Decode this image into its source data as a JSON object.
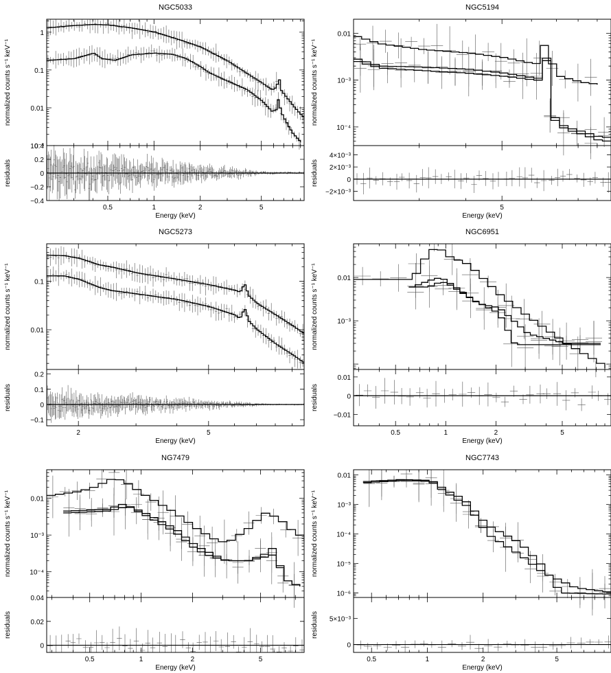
{
  "figure": {
    "common": {
      "ylabel_top": "normalized counts s⁻¹ keV⁻¹",
      "ylabel_bottom": "residuals",
      "xlabel": "Energy (keV)"
    }
  },
  "chart_data": [
    {
      "type": "line",
      "title": "NGC5033",
      "xlabel": "Energy (keV)",
      "ylabel": "normalized counts s⁻¹ keV⁻¹",
      "xscale": "log",
      "xlim": [
        0.2,
        9.5
      ],
      "top": {
        "yscale": "log",
        "ylim": [
          0.001,
          2.2
        ],
        "ticks": [
          {
            "v": 1,
            "t": "1"
          },
          {
            "v": 0.1,
            "t": "0.1"
          },
          {
            "v": 0.01,
            "t": "0.01"
          },
          {
            "v": 0.001,
            "t": "10⁻³"
          }
        ],
        "series": [
          {
            "x": [
              0.2,
              0.3,
              0.4,
              0.5,
              0.7,
              1.0,
              1.5,
              2.0,
              3.0,
              4.0,
              5.0,
              5.8,
              6.2,
              6.4,
              6.6,
              7.0,
              8.0,
              9.5
            ],
            "y": [
              1.3,
              1.5,
              1.6,
              1.55,
              1.3,
              1.0,
              0.6,
              0.4,
              0.17,
              0.08,
              0.045,
              0.03,
              0.035,
              0.07,
              0.03,
              0.022,
              0.011,
              0.005
            ]
          },
          {
            "x": [
              0.2,
              0.3,
              0.4,
              0.45,
              0.55,
              0.7,
              1.0,
              1.3,
              1.6,
              2.0,
              2.2,
              2.5,
              3.0,
              4.0,
              5.0,
              5.8,
              6.2,
              6.4,
              6.6,
              7.0,
              7.5,
              8.0,
              9.0
            ],
            "y": [
              0.18,
              0.2,
              0.28,
              0.2,
              0.18,
              0.25,
              0.28,
              0.26,
              0.2,
              0.12,
              0.09,
              0.07,
              0.05,
              0.03,
              0.015,
              0.008,
              0.009,
              0.02,
              0.008,
              0.005,
              0.003,
              0.002,
              0.0012
            ]
          }
        ]
      },
      "bottom": {
        "ylim": [
          -0.4,
          0.4
        ],
        "ticks": [
          {
            "v": 0.4,
            "t": "0.4"
          },
          {
            "v": 0.2,
            "t": "0.2"
          },
          {
            "v": 0,
            "t": "0"
          },
          {
            "v": -0.2,
            "t": "−0.2"
          },
          {
            "v": -0.4,
            "t": "−0.4"
          }
        ]
      },
      "xticks": [
        {
          "v": 0.5,
          "t": "0.5"
        },
        {
          "v": 1,
          "t": "1"
        },
        {
          "v": 2,
          "t": "2"
        },
        {
          "v": 5,
          "t": "5"
        }
      ],
      "points": 140,
      "resid_amp": 0.3
    },
    {
      "type": "line",
      "title": "NGC5194",
      "xlabel": "Energy (keV)",
      "ylabel": "normalized counts s⁻¹ keV⁻¹",
      "xscale": "log",
      "xlim": [
        2.0,
        9.8
      ],
      "top": {
        "yscale": "log",
        "ylim": [
          4e-05,
          0.02
        ],
        "ticks": [
          {
            "v": 0.01,
            "t": "0.01"
          },
          {
            "v": 0.001,
            "t": "10⁻³"
          },
          {
            "v": 0.0001,
            "t": "10⁻⁴"
          }
        ],
        "series": [
          {
            "x": [
              2.0,
              2.3,
              3.0,
              4.0,
              5.0,
              6.0,
              6.3,
              6.4,
              6.6,
              7.0,
              8.0,
              9.0
            ],
            "y": [
              0.0085,
              0.006,
              0.0045,
              0.0038,
              0.003,
              0.0022,
              0.003,
              0.016,
              0.0025,
              0.0012,
              0.0009,
              0.0008
            ]
          },
          {
            "x": [
              2.0,
              2.3,
              3.0,
              4.0,
              5.0,
              6.0,
              6.3,
              6.45,
              6.6,
              6.8,
              7.2,
              8.0,
              9.0,
              9.8
            ],
            "y": [
              0.0028,
              0.002,
              0.0019,
              0.0017,
              0.0014,
              0.0011,
              0.0011,
              0.004,
              0.0002,
              0.00015,
              0.0001,
              8e-05,
              6e-05,
              6e-05
            ]
          },
          {
            "x": [
              2.0,
              2.3,
              3.0,
              4.0,
              5.0,
              6.0,
              6.3,
              6.45,
              6.6,
              6.8,
              7.2,
              8.0,
              9.0,
              9.8
            ],
            "y": [
              0.0025,
              0.0018,
              0.0016,
              0.0014,
              0.0012,
              0.001,
              0.001,
              0.0035,
              0.00018,
              0.00013,
              9e-05,
              7e-05,
              5e-05,
              5e-05
            ]
          }
        ]
      },
      "bottom": {
        "ylim": [
          -0.0035,
          0.0055
        ],
        "ticks": [
          {
            "v": 0.004,
            "t": "4×10⁻³"
          },
          {
            "v": 0.002,
            "t": "2×10⁻³"
          },
          {
            "v": 0,
            "t": "0"
          },
          {
            "v": -0.002,
            "t": "−2×10⁻³"
          }
        ]
      },
      "xticks": [
        {
          "v": 5,
          "t": "5"
        }
      ],
      "points": 40,
      "resid_amp": 0.0015
    },
    {
      "type": "line",
      "title": "NGC5273",
      "xlabel": "Energy (keV)",
      "ylabel": "normalized counts s⁻¹ keV⁻¹",
      "xscale": "log",
      "xlim": [
        1.6,
        9.8
      ],
      "top": {
        "yscale": "log",
        "ylim": [
          0.0015,
          0.6
        ],
        "ticks": [
          {
            "v": 0.1,
            "t": "0.1"
          },
          {
            "v": 0.01,
            "t": "0.01"
          }
        ],
        "series": [
          {
            "x": [
              1.6,
              1.8,
              2.0,
              2.3,
              2.5,
              3.0,
              4.0,
              5.0,
              6.0,
              6.2,
              6.4,
              6.6,
              7.0,
              8.0,
              9.0,
              9.8
            ],
            "y": [
              0.35,
              0.34,
              0.3,
              0.22,
              0.2,
              0.15,
              0.11,
              0.085,
              0.065,
              0.06,
              0.09,
              0.05,
              0.035,
              0.02,
              0.012,
              0.008
            ]
          },
          {
            "x": [
              1.6,
              1.8,
              2.0,
              2.3,
              2.5,
              3.0,
              4.0,
              5.0,
              6.0,
              6.2,
              6.4,
              6.6,
              7.0,
              7.5,
              8.0,
              9.0,
              9.8
            ],
            "y": [
              0.13,
              0.13,
              0.11,
              0.075,
              0.065,
              0.055,
              0.042,
              0.03,
              0.02,
              0.017,
              0.028,
              0.015,
              0.01,
              0.007,
              0.005,
              0.003,
              0.002
            ]
          }
        ]
      },
      "bottom": {
        "ylim": [
          -0.14,
          0.23
        ],
        "ticks": [
          {
            "v": 0.2,
            "t": "0.2"
          },
          {
            "v": 0.1,
            "t": "0.1"
          },
          {
            "v": 0,
            "t": "0"
          },
          {
            "v": -0.1,
            "t": "−0.1"
          }
        ]
      },
      "xticks": [
        {
          "v": 2,
          "t": "2"
        },
        {
          "v": 5,
          "t": "5"
        }
      ],
      "points": 140,
      "resid_amp": 0.08
    },
    {
      "type": "line",
      "title": "NGC6951",
      "xlabel": "Energy (keV)",
      "ylabel": "normalized counts s⁻¹ keV⁻¹",
      "xscale": "log",
      "xlim": [
        0.28,
        9.8
      ],
      "top": {
        "yscale": "log",
        "ylim": [
          7.5e-05,
          0.06
        ],
        "ticks": [
          {
            "v": 0.01,
            "t": "0.01"
          },
          {
            "v": 0.001,
            "t": "10⁻³"
          }
        ],
        "series": [
          {
            "x": [
              0.28,
              0.6,
              0.75,
              0.85,
              1.0,
              1.3,
              2.0,
              3.0,
              5.0,
              9.0
            ],
            "y": [
              0.009,
              0.009,
              0.04,
              0.05,
              0.03,
              0.02,
              0.004,
              0.0012,
              0.0003,
              8e-05
            ]
          },
          {
            "x": [
              0.6,
              0.75,
              0.9,
              1.0,
              1.4,
              2.0,
              2.5,
              3.0,
              5.0,
              8.5
            ],
            "y": [
              0.006,
              0.006,
              0.008,
              0.007,
              0.003,
              0.0015,
              0.00028,
              0.00028,
              0.00028,
              0.00028
            ]
          },
          {
            "x": [
              0.6,
              0.8,
              0.9,
              1.1,
              1.5,
              2.0,
              3.0,
              5.0,
              8.5
            ],
            "y": [
              0.006,
              0.009,
              0.01,
              0.006,
              0.0025,
              0.002,
              0.0005,
              0.0003,
              0.0003
            ]
          }
        ]
      },
      "bottom": {
        "ylim": [
          -0.016,
          0.014
        ],
        "ticks": [
          {
            "v": 0.01,
            "t": "0.01"
          },
          {
            "v": 0,
            "t": "0"
          },
          {
            "v": -0.01,
            "t": "−0.01"
          }
        ]
      },
      "xticks": [
        {
          "v": 0.5,
          "t": "0.5"
        },
        {
          "v": 1,
          "t": "1"
        },
        {
          "v": 2,
          "t": "2"
        },
        {
          "v": 5,
          "t": "5"
        }
      ],
      "points": 30,
      "resid_amp": 0.006
    },
    {
      "type": "line",
      "title": "NG7479",
      "xlabel": "Energy (keV)",
      "ylabel": "normalized counts s⁻¹ keV⁻¹",
      "xscale": "log",
      "xlim": [
        0.28,
        9.0
      ],
      "top": {
        "yscale": "log",
        "ylim": [
          2e-05,
          0.06
        ],
        "ticks": [
          {
            "v": 0.01,
            "t": "0.01"
          },
          {
            "v": 0.001,
            "t": "10⁻³"
          },
          {
            "v": 0.0001,
            "t": "10⁻⁴"
          }
        ],
        "series": [
          {
            "x": [
              0.28,
              0.4,
              0.5,
              0.65,
              0.75,
              1.0,
              1.5,
              2.0,
              2.5,
              3.0,
              4.0,
              5.0,
              6.0,
              7.0,
              9.0
            ],
            "y": [
              0.012,
              0.015,
              0.02,
              0.035,
              0.03,
              0.012,
              0.004,
              0.0015,
              0.0008,
              0.0006,
              0.0015,
              0.004,
              0.003,
              0.0015,
              0.0007
            ]
          },
          {
            "x": [
              0.35,
              0.6,
              0.75,
              1.0,
              1.5,
              2.0,
              2.5,
              3.0,
              4.0,
              5.0,
              5.8,
              6.3,
              7.0,
              8.5
            ],
            "y": [
              0.0045,
              0.005,
              0.007,
              0.004,
              0.0015,
              0.0005,
              0.0003,
              0.0002,
              0.0002,
              0.0003,
              0.0005,
              0.0001,
              5e-05,
              4e-05
            ]
          },
          {
            "x": [
              0.35,
              0.6,
              0.8,
              1.0,
              1.5,
              2.0,
              2.5,
              3.0,
              4.0,
              5.0,
              5.8,
              6.3,
              7.0,
              8.5
            ],
            "y": [
              0.004,
              0.0045,
              0.006,
              0.0035,
              0.0012,
              0.0004,
              0.00025,
              0.0002,
              0.0002,
              0.00025,
              0.0003,
              0.0001,
              5e-05,
              4e-05
            ]
          }
        ]
      },
      "bottom": {
        "ylim": [
          -0.006,
          0.04
        ],
        "ticks": [
          {
            "v": 0.04,
            "t": "0.04"
          },
          {
            "v": 0.02,
            "t": "0.02"
          },
          {
            "v": 0,
            "t": "0"
          }
        ]
      },
      "xticks": [
        {
          "v": 0.5,
          "t": "0.5"
        },
        {
          "v": 1,
          "t": "1"
        },
        {
          "v": 2,
          "t": "2"
        },
        {
          "v": 5,
          "t": "5"
        }
      ],
      "points": 45,
      "resid_amp": 0.01
    },
    {
      "type": "line",
      "title": "NGC7743",
      "xlabel": "Energy (keV)",
      "ylabel": "normalized counts s⁻¹ keV⁻¹",
      "xscale": "log",
      "xlim": [
        0.4,
        9.8
      ],
      "top": {
        "yscale": "log",
        "ylim": [
          7e-07,
          0.015
        ],
        "ticks": [
          {
            "v": 0.01,
            "t": "0.01"
          },
          {
            "v": 0.001,
            "t": "10⁻³"
          },
          {
            "v": 0.0001,
            "t": "10⁻⁴"
          },
          {
            "v": 1e-05,
            "t": "10⁻⁵"
          },
          {
            "v": 1e-06,
            "t": "10⁻⁶"
          }
        ],
        "series": [
          {
            "x": [
              0.45,
              0.7,
              1.0,
              1.2,
              1.5,
              2.0,
              3.0,
              4.0,
              5.0,
              9.8
            ],
            "y": [
              0.006,
              0.007,
              0.0065,
              0.003,
              0.0015,
              0.0002,
              5e-05,
              8e-06,
              1e-06,
              9e-07
            ]
          },
          {
            "x": [
              0.45,
              0.7,
              1.0,
              1.2,
              1.6,
              2.0,
              3.0,
              4.0,
              6.0,
              9.8
            ],
            "y": [
              0.0055,
              0.0065,
              0.006,
              0.0025,
              0.0008,
              0.0001,
              2e-05,
              5e-06,
              1.5e-06,
              1e-06
            ]
          }
        ]
      },
      "bottom": {
        "ylim": [
          -0.0015,
          0.009
        ],
        "ticks": [
          {
            "v": 0.005,
            "t": "5×10⁻³"
          },
          {
            "v": 0,
            "t": "0"
          }
        ]
      },
      "xticks": [
        {
          "v": 0.5,
          "t": "0.5"
        },
        {
          "v": 1,
          "t": "1"
        },
        {
          "v": 2,
          "t": "2"
        },
        {
          "v": 5,
          "t": "5"
        }
      ],
      "points": 28,
      "resid_amp": 0.0012
    }
  ]
}
